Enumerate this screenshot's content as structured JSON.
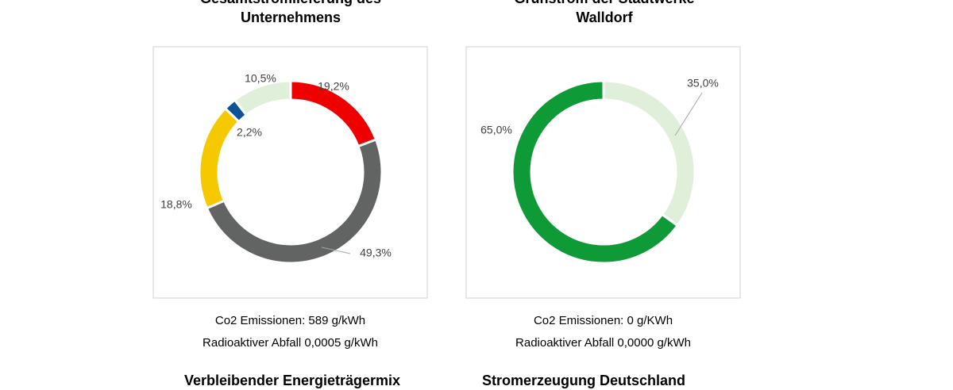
{
  "chart_data": [
    {
      "type": "donut",
      "title": "Gesamtstromlieferung des Unternehmens",
      "values": [
        19.2,
        49.3,
        18.8,
        2.2,
        10.5
      ],
      "value_labels": [
        "19,2%",
        "49,3%",
        "18,8%",
        "2,2%",
        "10,5%"
      ],
      "colors": [
        "#ee0000",
        "#616462",
        "#f5c800",
        "#0b5394",
        "#e0efd9"
      ],
      "notes": [
        "Co2 Emissionen: 589 g/kWh",
        "Radioaktiver Abfall 0,0005 g/kWh"
      ]
    },
    {
      "type": "donut",
      "title": "Grünstrom der Stadtwerke Walldorf",
      "values": [
        35.0,
        65.0
      ],
      "value_labels": [
        "35,0%",
        "65,0%"
      ],
      "colors": [
        "#e0efd9",
        "#0f9a38"
      ],
      "notes": [
        "Co2 Emissionen: 0 g/KWh",
        "Radioaktiver Abfall 0,0000 g/kWh"
      ]
    }
  ],
  "more_titles": [
    "Verbleibender Energieträgermix",
    "Stromerzeugung Deutschland"
  ]
}
